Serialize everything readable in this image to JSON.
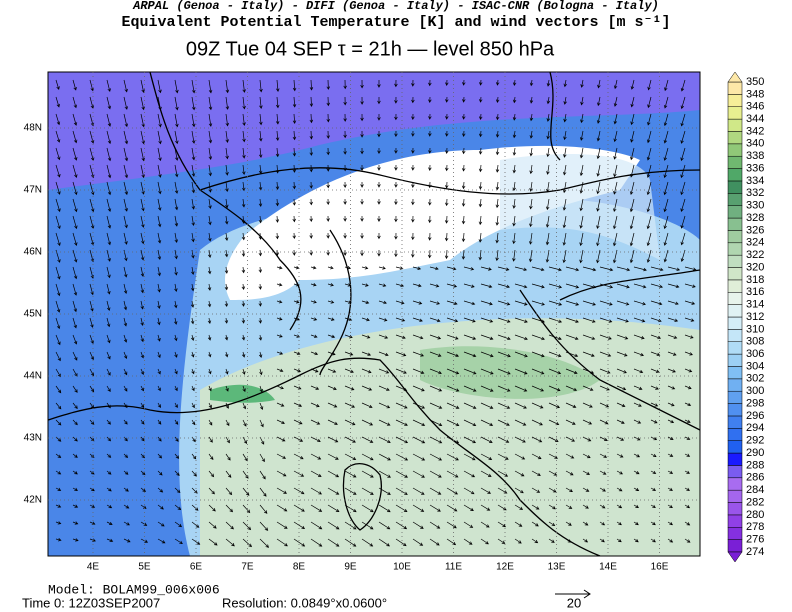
{
  "header": {
    "credits": "ARPAL (Genoa - Italy)  -  DIFI (Genoa - Italy)  -  ISAC-CNR (Bologna - Italy)",
    "title": "Equivalent Potential Temperature [K] and wind vectors [m s⁻¹]",
    "subtitle": "09Z Tue 04 SEP   τ = 21h   —   level 850 hPa"
  },
  "map": {
    "lon_labels": [
      "4E",
      "5E",
      "6E",
      "7E",
      "8E",
      "9E",
      "10E",
      "11E",
      "12E",
      "13E",
      "14E",
      "16E"
    ],
    "lat_labels": [
      "48N",
      "47N",
      "46N",
      "45N",
      "44N",
      "43N",
      "42N"
    ]
  },
  "colorbar": {
    "labels": [
      "274",
      "276",
      "278",
      "280",
      "282",
      "284",
      "286",
      "288",
      "290",
      "292",
      "294",
      "296",
      "298",
      "300",
      "302",
      "304",
      "306",
      "308",
      "310",
      "312",
      "314",
      "316",
      "318",
      "320",
      "322",
      "324",
      "326",
      "328",
      "330",
      "332",
      "334",
      "336",
      "338",
      "340",
      "342",
      "344",
      "346",
      "348",
      "350"
    ],
    "colors": [
      "#7a1fd6",
      "#8530e0",
      "#9040e6",
      "#9a55ea",
      "#a466ee",
      "#a86cf0",
      "#7a5cf0",
      "#1a1aff",
      "#2060f0",
      "#3070f0",
      "#4080f0",
      "#5090f0",
      "#60a0f0",
      "#70b0f2",
      "#80c0f4",
      "#9cd0f4",
      "#b0dcf6",
      "#c4e6f8",
      "#d4eef8",
      "#e0f2f4",
      "#e8f4ec",
      "#e0eed8",
      "#d0e6c8",
      "#c0dec0",
      "#b0d6b0",
      "#a0cca0",
      "#88c090",
      "#70b080",
      "#58a070",
      "#409060",
      "#50a868",
      "#70b870",
      "#90c878",
      "#b0d880",
      "#d0e888",
      "#e8ef90",
      "#f6ee98",
      "#fde8a8"
    ]
  },
  "footer": {
    "model": "Model: BOLAM99_006x006",
    "time": "Time 0: 12Z03SEP2007",
    "resolution": "Resolution: 0.0849°x0.0600°",
    "vector_ref": "20"
  }
}
